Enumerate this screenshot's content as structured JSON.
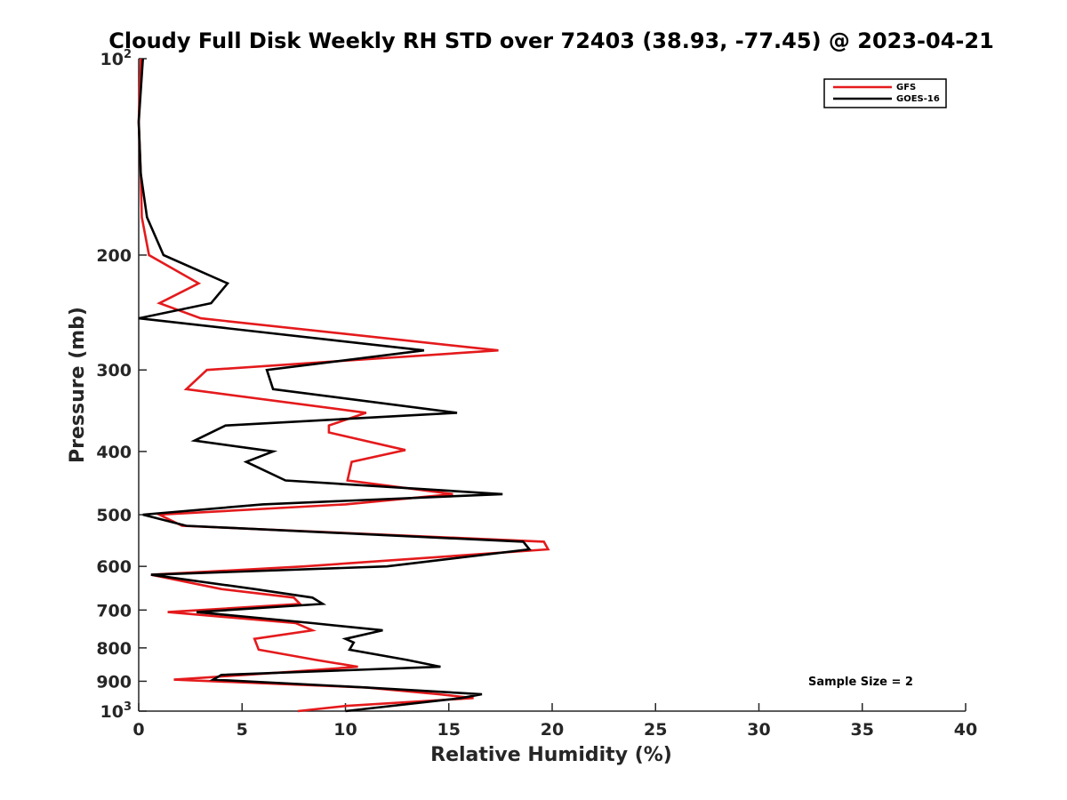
{
  "chart_data": {
    "type": "line",
    "title": "Cloudy Full Disk Weekly RH STD over 72403 (38.93, -77.45) @ 2023-04-21",
    "xlabel": "Relative Humidity (%)",
    "ylabel": "Pressure (mb)",
    "xlim": [
      0,
      40
    ],
    "ylim": [
      100,
      1000
    ],
    "y_scale": "log",
    "y_reversed": true,
    "x_ticks": [
      "0",
      "5",
      "10",
      "15",
      "20",
      "25",
      "30",
      "35",
      "40"
    ],
    "y_ticks": [
      {
        "value": 100,
        "label": "10",
        "sup": "2"
      },
      {
        "value": 200,
        "label": "200",
        "sup": ""
      },
      {
        "value": 300,
        "label": "300",
        "sup": ""
      },
      {
        "value": 400,
        "label": "400",
        "sup": ""
      },
      {
        "value": 500,
        "label": "500",
        "sup": ""
      },
      {
        "value": 600,
        "label": "600",
        "sup": ""
      },
      {
        "value": 700,
        "label": "700",
        "sup": ""
      },
      {
        "value": 800,
        "label": "800",
        "sup": ""
      },
      {
        "value": 900,
        "label": "900",
        "sup": ""
      },
      {
        "value": 1000,
        "label": "10",
        "sup": "3"
      }
    ],
    "grid": false,
    "legend_position": "top-right",
    "annotation": "Sample Size = 2",
    "series": [
      {
        "name": "GFS",
        "color": "#e41a1c",
        "points": [
          [
            0.1,
            100
          ],
          [
            0.0,
            125
          ],
          [
            0.1,
            150
          ],
          [
            0.15,
            175
          ],
          [
            0.5,
            200
          ],
          [
            2.9,
            221
          ],
          [
            1.0,
            237
          ],
          [
            3.0,
            250
          ],
          [
            17.4,
            280
          ],
          [
            3.3,
            300
          ],
          [
            2.3,
            321
          ],
          [
            11.0,
            349
          ],
          [
            9.2,
            365
          ],
          [
            9.2,
            374
          ],
          [
            12.9,
            398
          ],
          [
            10.3,
            415
          ],
          [
            10.1,
            443
          ],
          [
            15.2,
            465
          ],
          [
            10.0,
            482
          ],
          [
            1.0,
            500
          ],
          [
            2.1,
            520
          ],
          [
            19.6,
            550
          ],
          [
            19.8,
            565
          ],
          [
            8.0,
            600
          ],
          [
            0.6,
            618
          ],
          [
            4.0,
            650
          ],
          [
            7.5,
            670
          ],
          [
            7.8,
            685
          ],
          [
            1.4,
            705
          ],
          [
            7.6,
            733
          ],
          [
            8.4,
            752
          ],
          [
            5.6,
            775
          ],
          [
            5.8,
            805
          ],
          [
            8.6,
            835
          ],
          [
            10.6,
            855
          ],
          [
            7.5,
            870
          ],
          [
            1.7,
            895
          ],
          [
            11.0,
            920
          ],
          [
            14.5,
            942
          ],
          [
            16.2,
            955
          ],
          [
            10.0,
            982
          ],
          [
            7.7,
            1000
          ]
        ]
      },
      {
        "name": "GOES-16",
        "color": "#000000",
        "points": [
          [
            0.2,
            100
          ],
          [
            0.0,
            125
          ],
          [
            0.1,
            150
          ],
          [
            0.4,
            175
          ],
          [
            1.2,
            200
          ],
          [
            4.3,
            221
          ],
          [
            3.5,
            237
          ],
          [
            0.0,
            250
          ],
          [
            13.8,
            280
          ],
          [
            6.2,
            300
          ],
          [
            6.5,
            321
          ],
          [
            15.4,
            349
          ],
          [
            4.2,
            365
          ],
          [
            2.7,
            385
          ],
          [
            6.5,
            400
          ],
          [
            5.2,
            415
          ],
          [
            7.1,
            443
          ],
          [
            17.6,
            465
          ],
          [
            6.0,
            482
          ],
          [
            0.2,
            500
          ],
          [
            2.3,
            520
          ],
          [
            18.6,
            550
          ],
          [
            18.9,
            565
          ],
          [
            12.0,
            600
          ],
          [
            0.6,
            618
          ],
          [
            5.6,
            650
          ],
          [
            8.4,
            670
          ],
          [
            8.9,
            685
          ],
          [
            2.8,
            705
          ],
          [
            8.4,
            733
          ],
          [
            11.8,
            752
          ],
          [
            10.0,
            775
          ],
          [
            10.4,
            785
          ],
          [
            10.2,
            805
          ],
          [
            13.0,
            835
          ],
          [
            14.6,
            855
          ],
          [
            4.0,
            880
          ],
          [
            3.6,
            895
          ],
          [
            11.0,
            920
          ],
          [
            16.6,
            942
          ],
          [
            15.6,
            955
          ],
          [
            10.0,
            1000
          ]
        ]
      }
    ]
  }
}
